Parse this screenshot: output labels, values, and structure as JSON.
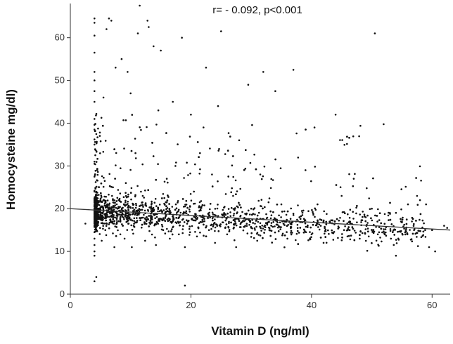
{
  "chart_data": {
    "type": "scatter",
    "title": "",
    "annotation": "r= - 0.092, p<0.001",
    "xlabel": "Vitamin D (ng/ml)",
    "ylabel": "Homocysteine mg/dl)",
    "xlim": [
      0,
      63
    ],
    "ylim": [
      0,
      68
    ],
    "x_ticks": [
      0,
      20,
      40,
      60
    ],
    "y_ticks": [
      0,
      10,
      20,
      30,
      40,
      50,
      60
    ],
    "grid": false,
    "legend": "none",
    "point_color": "#111111",
    "line_color": "#333333",
    "fit_line": {
      "x": [
        0,
        63
      ],
      "y": [
        20.0,
        15.0
      ]
    },
    "points": [
      [
        2.5,
        16.5
      ],
      [
        4,
        64.5
      ],
      [
        4,
        63.5
      ],
      [
        4,
        60.5
      ],
      [
        4,
        56.5
      ],
      [
        4,
        52
      ],
      [
        4,
        50
      ],
      [
        4,
        47.5
      ],
      [
        4,
        45
      ],
      [
        4,
        41
      ],
      [
        4,
        38.5
      ],
      [
        4,
        35
      ],
      [
        4,
        31
      ],
      [
        4,
        27.5
      ],
      [
        4,
        24
      ],
      [
        4,
        22
      ],
      [
        4,
        20.5
      ],
      [
        4,
        19
      ],
      [
        4,
        17.5
      ],
      [
        4,
        16
      ],
      [
        4,
        14.5
      ],
      [
        4,
        13
      ],
      [
        4,
        11.5
      ],
      [
        4,
        10
      ],
      [
        4,
        9
      ],
      [
        4,
        3
      ],
      [
        4.3,
        4
      ],
      [
        5,
        18
      ],
      [
        5.2,
        12.5
      ],
      [
        5.5,
        46
      ],
      [
        5.8,
        15
      ],
      [
        6,
        62
      ],
      [
        6.4,
        64.5
      ],
      [
        6.8,
        64
      ],
      [
        7,
        17
      ],
      [
        7.3,
        11
      ],
      [
        7.5,
        53
      ],
      [
        7.8,
        20
      ],
      [
        8,
        22
      ],
      [
        8.3,
        14
      ],
      [
        8.5,
        55
      ],
      [
        9,
        13
      ],
      [
        9.2,
        26
      ],
      [
        9.5,
        52
      ],
      [
        10,
        47
      ],
      [
        10.2,
        11
      ],
      [
        10.5,
        16
      ],
      [
        10.8,
        33
      ],
      [
        11.2,
        61
      ],
      [
        11.5,
        67.5
      ],
      [
        12,
        23
      ],
      [
        12.4,
        12.5
      ],
      [
        12.8,
        64
      ],
      [
        13,
        62.5
      ],
      [
        13.4,
        18
      ],
      [
        13.8,
        58
      ],
      [
        14.2,
        11.5
      ],
      [
        14.6,
        43
      ],
      [
        15,
        57
      ],
      [
        15.4,
        15
      ],
      [
        16,
        27
      ],
      [
        16.5,
        13
      ],
      [
        17,
        45
      ],
      [
        17.5,
        21
      ],
      [
        18,
        14
      ],
      [
        18.5,
        60
      ],
      [
        19,
        2
      ],
      [
        19,
        11
      ],
      [
        19.5,
        17
      ],
      [
        20,
        42
      ],
      [
        20.5,
        24
      ],
      [
        21,
        13.5
      ],
      [
        21.5,
        33
      ],
      [
        22,
        18
      ],
      [
        22.5,
        53
      ],
      [
        23,
        15
      ],
      [
        23.5,
        28
      ],
      [
        24,
        12
      ],
      [
        24.5,
        44
      ],
      [
        25,
        61.5
      ],
      [
        25.5,
        19
      ],
      [
        26,
        14
      ],
      [
        27,
        23
      ],
      [
        27.5,
        11
      ],
      [
        28,
        36
      ],
      [
        29,
        16
      ],
      [
        29.5,
        49
      ],
      [
        30,
        20
      ],
      [
        31,
        12.5
      ],
      [
        31.5,
        28
      ],
      [
        32,
        52
      ],
      [
        33,
        15
      ],
      [
        34,
        47.5
      ],
      [
        35,
        21
      ],
      [
        36,
        13
      ],
      [
        37,
        52.5
      ],
      [
        38,
        18
      ],
      [
        39,
        29
      ],
      [
        40,
        14
      ],
      [
        40.5,
        39
      ],
      [
        41,
        21
      ],
      [
        42,
        12
      ],
      [
        43,
        17
      ],
      [
        44,
        42
      ],
      [
        45,
        23
      ],
      [
        46,
        15
      ],
      [
        47,
        27
      ],
      [
        48,
        13
      ],
      [
        49,
        18
      ],
      [
        50,
        20
      ],
      [
        50.5,
        61
      ],
      [
        51,
        14
      ],
      [
        53,
        19
      ],
      [
        54,
        9
      ],
      [
        55,
        17
      ],
      [
        56,
        21
      ],
      [
        57,
        15
      ],
      [
        57.5,
        23
      ],
      [
        58,
        22
      ],
      [
        59,
        21
      ],
      [
        59.5,
        11
      ],
      [
        60,
        15
      ],
      [
        60.5,
        10
      ],
      [
        62,
        16
      ],
      [
        62.5,
        15.5
      ]
    ]
  }
}
